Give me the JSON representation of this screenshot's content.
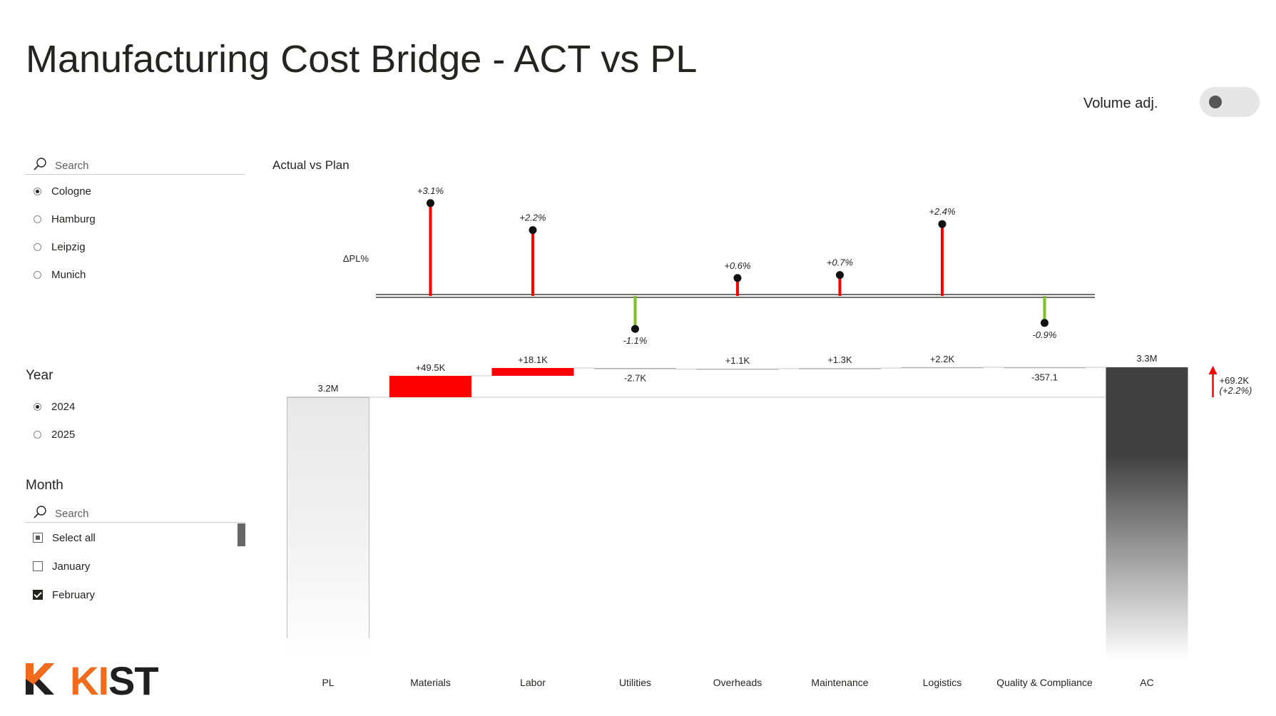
{
  "title": "Manufacturing Cost Bridge - ACT vs PL",
  "toggle": {
    "label": "Volume adj.",
    "on": false
  },
  "location_slicer": {
    "search_placeholder": "Search",
    "options": [
      {
        "label": "Cologne",
        "selected": true
      },
      {
        "label": "Hamburg",
        "selected": false
      },
      {
        "label": "Leipzig",
        "selected": false
      },
      {
        "label": "Munich",
        "selected": false
      }
    ]
  },
  "year_slicer": {
    "title": "Year",
    "options": [
      {
        "label": "2024",
        "selected": true
      },
      {
        "label": "2025",
        "selected": false
      }
    ]
  },
  "month_slicer": {
    "title": "Month",
    "search_placeholder": "Search",
    "options": [
      {
        "label": "Select all",
        "state": "partial"
      },
      {
        "label": "January",
        "state": "unchecked"
      },
      {
        "label": "February",
        "state": "checked"
      }
    ]
  },
  "chart_title": "Actual vs Plan",
  "logo": {
    "part1": "KI",
    "part2": "ST"
  },
  "colors": {
    "positive": "#ff0000",
    "negative": "#7dc21e",
    "plan": "#e8e8e8",
    "actual": "#404040",
    "logo_orange": "#f26a1b"
  },
  "chart_data": [
    {
      "type": "lollipop",
      "ylabel": "ΔPL%",
      "categories": [
        "Materials",
        "Labor",
        "Utilities",
        "Overheads",
        "Maintenance",
        "Logistics",
        "Quality & Compliance"
      ],
      "values": [
        3.1,
        2.2,
        -1.1,
        0.6,
        0.7,
        2.4,
        -0.9
      ],
      "labels": [
        "+3.1%",
        "+2.2%",
        "-1.1%",
        "+0.6%",
        "+0.7%",
        "+2.4%",
        "-0.9%"
      ]
    },
    {
      "type": "bar",
      "subtype": "waterfall",
      "categories": [
        "PL",
        "Materials",
        "Labor",
        "Utilities",
        "Overheads",
        "Maintenance",
        "Logistics",
        "Quality & Compliance",
        "AC"
      ],
      "values": [
        3200000,
        49500,
        18100,
        -2700,
        1100,
        1300,
        2200,
        -357.1,
        3269200
      ],
      "labels": [
        "3.2M",
        "+49.5K",
        "+18.1K",
        "-2.7K",
        "+1.1K",
        "+1.3K",
        "+2.2K",
        "-357.1",
        "3.3M"
      ],
      "kinds": [
        "total",
        "delta",
        "delta",
        "delta",
        "delta",
        "delta",
        "delta",
        "delta",
        "total"
      ],
      "total_delta": {
        "label": "+69.2K",
        "percent_label": "(+2.2%)"
      }
    }
  ]
}
